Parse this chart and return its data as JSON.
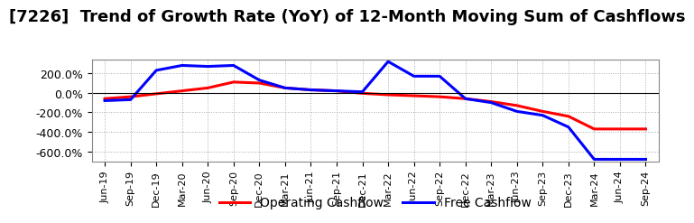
{
  "title": "[7226]  Trend of Growth Rate (YoY) of 12-Month Moving Sum of Cashflows",
  "title_fontsize": 13,
  "xlabel": "",
  "ylabel": "",
  "background_color": "#ffffff",
  "plot_bg_color": "#ffffff",
  "grid_color": "#aaaaaa",
  "ylim": [
    -700,
    340
  ],
  "yticks": [
    200,
    0,
    -200,
    -400,
    -600
  ],
  "ytick_labels": [
    "200.0%",
    "0.0%",
    "-200.0%",
    "-400.0%",
    "-600.0%"
  ],
  "legend_labels": [
    "Operating Cashflow",
    "Free Cashflow"
  ],
  "legend_colors": [
    "#ff0000",
    "#0000ff"
  ],
  "x_labels": [
    "Jun-19",
    "Sep-19",
    "Dec-19",
    "Mar-20",
    "Jun-20",
    "Sep-20",
    "Dec-20",
    "Mar-21",
    "Jun-21",
    "Sep-21",
    "Dec-21",
    "Mar-22",
    "Jun-22",
    "Sep-22",
    "Dec-22",
    "Mar-23",
    "Jun-23",
    "Sep-23",
    "Dec-23",
    "Mar-24",
    "Jun-24",
    "Sep-24"
  ],
  "operating_cashflow": [
    -60,
    -40,
    -10,
    20,
    50,
    110,
    100,
    50,
    30,
    20,
    -5,
    -20,
    -30,
    -40,
    -60,
    -90,
    -130,
    -190,
    -240,
    -370,
    -370,
    -370
  ],
  "free_cashflow": [
    -80,
    -70,
    230,
    280,
    270,
    280,
    130,
    50,
    30,
    20,
    10,
    320,
    170,
    170,
    -60,
    -100,
    -190,
    -230,
    -350,
    -680,
    -680,
    -680
  ]
}
